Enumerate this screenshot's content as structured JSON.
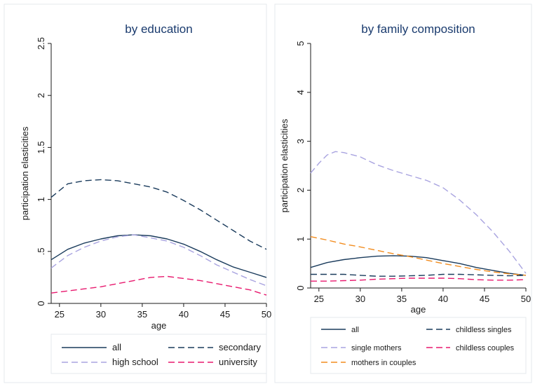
{
  "chart_data": [
    {
      "type": "line",
      "title": "by education",
      "xlabel": "age",
      "ylabel": "participation elasticities",
      "xlim": [
        24,
        50
      ],
      "ylim": [
        0,
        2.5
      ],
      "xticks": [
        25,
        30,
        35,
        40,
        45,
        50
      ],
      "yticks": [
        0,
        0.5,
        1,
        1.5,
        2,
        2.5
      ],
      "ytick_labels": [
        "0",
        ".5",
        "1",
        "1.5",
        "2",
        "2.5"
      ],
      "grid": false,
      "legend_position": "bottom",
      "series": [
        {
          "name": "all",
          "style": "solid",
          "color": "#1a3b5c",
          "x": [
            24,
            26,
            28,
            30,
            32,
            34,
            36,
            38,
            40,
            42,
            44,
            46,
            48,
            50
          ],
          "y": [
            0.42,
            0.52,
            0.58,
            0.62,
            0.65,
            0.66,
            0.65,
            0.62,
            0.57,
            0.5,
            0.42,
            0.35,
            0.3,
            0.25
          ]
        },
        {
          "name": "secondary",
          "style": "dashed",
          "color": "#1a3b5c",
          "x": [
            24,
            26,
            28,
            30,
            32,
            34,
            36,
            38,
            40,
            42,
            44,
            46,
            48,
            50
          ],
          "y": [
            1.02,
            1.15,
            1.18,
            1.19,
            1.18,
            1.15,
            1.12,
            1.07,
            0.99,
            0.9,
            0.8,
            0.7,
            0.6,
            0.52
          ]
        },
        {
          "name": "high school",
          "style": "dashed",
          "color": "#a9a4e0",
          "x": [
            24,
            26,
            28,
            30,
            32,
            34,
            36,
            38,
            40,
            42,
            44,
            46,
            48,
            50
          ],
          "y": [
            0.34,
            0.46,
            0.54,
            0.6,
            0.64,
            0.66,
            0.63,
            0.6,
            0.54,
            0.46,
            0.37,
            0.3,
            0.23,
            0.17
          ]
        },
        {
          "name": "university",
          "style": "dashed",
          "color": "#e8196e",
          "x": [
            24,
            26,
            28,
            30,
            32,
            34,
            36,
            38,
            40,
            42,
            44,
            46,
            48,
            50
          ],
          "y": [
            0.1,
            0.12,
            0.14,
            0.16,
            0.19,
            0.22,
            0.25,
            0.26,
            0.24,
            0.22,
            0.19,
            0.16,
            0.13,
            0.08
          ]
        }
      ]
    },
    {
      "type": "line",
      "title": "by family composition",
      "xlabel": "age",
      "ylabel": "participation elasticities",
      "xlim": [
        24,
        50
      ],
      "ylim": [
        0,
        5
      ],
      "xticks": [
        25,
        30,
        35,
        40,
        45,
        50
      ],
      "yticks": [
        0,
        1,
        2,
        3,
        4,
        5
      ],
      "ytick_labels": [
        "0",
        "1",
        "2",
        "3",
        "4",
        "5"
      ],
      "grid": false,
      "legend_position": "bottom",
      "series": [
        {
          "name": "all",
          "style": "solid",
          "color": "#1a3b5c",
          "x": [
            24,
            26,
            28,
            30,
            32,
            34,
            36,
            38,
            40,
            42,
            44,
            46,
            48,
            50
          ],
          "y": [
            0.42,
            0.52,
            0.58,
            0.62,
            0.65,
            0.66,
            0.65,
            0.62,
            0.56,
            0.5,
            0.42,
            0.36,
            0.3,
            0.26
          ]
        },
        {
          "name": "childless singles",
          "style": "dashed",
          "color": "#1a3b5c",
          "x": [
            24,
            26,
            28,
            30,
            32,
            34,
            36,
            38,
            40,
            42,
            44,
            46,
            48,
            50
          ],
          "y": [
            0.28,
            0.28,
            0.28,
            0.26,
            0.24,
            0.24,
            0.25,
            0.26,
            0.28,
            0.28,
            0.27,
            0.26,
            0.25,
            0.26
          ]
        },
        {
          "name": "single mothers",
          "style": "dashed",
          "color": "#a9a4e0",
          "x": [
            24,
            25,
            26,
            27,
            28,
            30,
            32,
            34,
            36,
            38,
            40,
            42,
            44,
            46,
            48,
            50
          ],
          "y": [
            2.35,
            2.55,
            2.72,
            2.79,
            2.77,
            2.68,
            2.52,
            2.4,
            2.3,
            2.2,
            2.05,
            1.8,
            1.5,
            1.15,
            0.75,
            0.3
          ]
        },
        {
          "name": "childless couples",
          "style": "dashed",
          "color": "#e8196e",
          "x": [
            24,
            26,
            28,
            30,
            32,
            34,
            36,
            38,
            40,
            42,
            44,
            46,
            48,
            50
          ],
          "y": [
            0.14,
            0.14,
            0.15,
            0.16,
            0.18,
            0.19,
            0.2,
            0.2,
            0.2,
            0.19,
            0.17,
            0.16,
            0.16,
            0.17
          ]
        },
        {
          "name": "mothers in couples",
          "style": "dashed",
          "color": "#f28c1e",
          "x": [
            24,
            26,
            28,
            30,
            32,
            34,
            36,
            38,
            40,
            42,
            44,
            46,
            48,
            50
          ],
          "y": [
            1.05,
            0.98,
            0.9,
            0.84,
            0.77,
            0.7,
            0.64,
            0.57,
            0.5,
            0.44,
            0.38,
            0.33,
            0.29,
            0.26
          ]
        }
      ]
    }
  ]
}
